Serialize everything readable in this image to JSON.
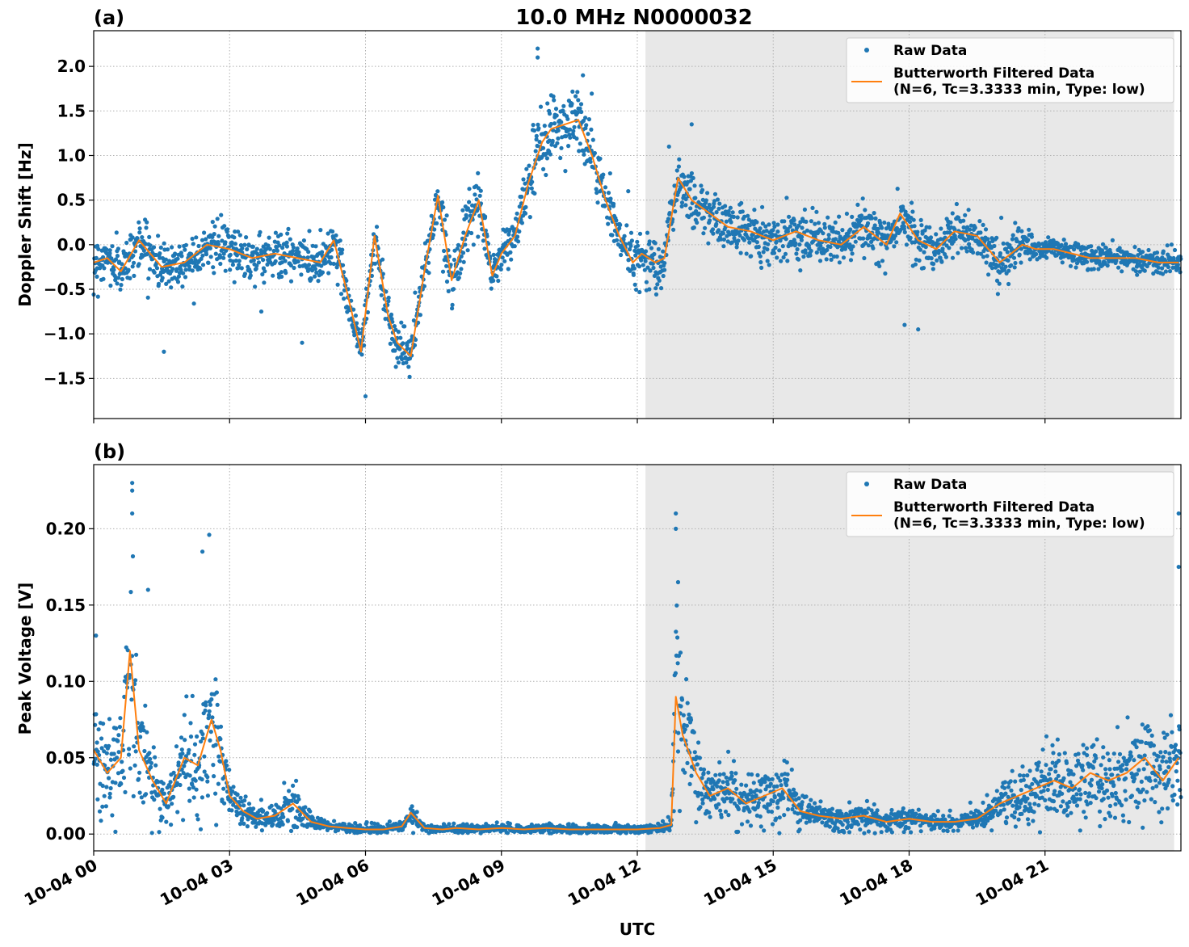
{
  "figure": {
    "title": "10.0 MHz N0000032",
    "xlabel": "UTC",
    "shaded_region": {
      "start_hour": 12.18,
      "end_hour": 23.85,
      "color": "#e8e8e8"
    },
    "x_ticks": [
      {
        "hour": 0,
        "label": "10-04 00"
      },
      {
        "hour": 3,
        "label": "10-04 03"
      },
      {
        "hour": 6,
        "label": "10-04 06"
      },
      {
        "hour": 9,
        "label": "10-04 09"
      },
      {
        "hour": 12,
        "label": "10-04 12"
      },
      {
        "hour": 15,
        "label": "10-04 15"
      },
      {
        "hour": 18,
        "label": "10-04 18"
      },
      {
        "hour": 21,
        "label": "10-04 21"
      }
    ],
    "colors": {
      "raw": "#1f77b4",
      "filtered": "#ff7f0e",
      "grid": "#b0b0b0"
    }
  },
  "chart_data": [
    {
      "panel_label": "(a)",
      "type": "scatter",
      "ylabel": "Doppler Shift [Hz]",
      "xlim": [
        0,
        24
      ],
      "ylim": [
        -1.95,
        2.4
      ],
      "y_ticks": [
        {
          "value": 2.0,
          "label": "2.0"
        },
        {
          "value": 1.5,
          "label": "1.5"
        },
        {
          "value": 1.0,
          "label": "1.0"
        },
        {
          "value": 0.5,
          "label": "0.5"
        },
        {
          "value": 0.0,
          "label": "0.0"
        },
        {
          "value": -0.5,
          "label": "−0.5"
        },
        {
          "value": -1.0,
          "label": "−1.0"
        },
        {
          "value": -1.5,
          "label": "−1.5"
        }
      ],
      "legend": {
        "position": "top-right",
        "raw": "Raw Data",
        "filtered_line1": "Butterworth Filtered Data",
        "filtered_line2": "(N=6, Tc=3.3333 min, Type: low)"
      },
      "series": [
        {
          "name": "Butterworth Filtered Data",
          "x": [
            0,
            0.3,
            0.6,
            1.0,
            1.5,
            2.0,
            2.5,
            3.0,
            3.5,
            4.0,
            4.5,
            5.0,
            5.3,
            5.6,
            5.9,
            6.2,
            6.5,
            6.7,
            7.0,
            7.3,
            7.6,
            7.9,
            8.2,
            8.5,
            8.8,
            9.0,
            9.3,
            9.6,
            9.9,
            10.1,
            10.4,
            10.7,
            11.0,
            11.3,
            11.6,
            11.9,
            12.1,
            12.4,
            12.6,
            12.9,
            13.2,
            13.6,
            14.0,
            14.5,
            15.0,
            15.5,
            16.0,
            16.5,
            17.0,
            17.5,
            17.8,
            18.2,
            18.6,
            19.0,
            19.5,
            20.0,
            20.5,
            20.8,
            21.2,
            21.6,
            22.0,
            22.5,
            23.0,
            23.5,
            23.95
          ],
          "y": [
            -0.2,
            -0.15,
            -0.3,
            0.05,
            -0.25,
            -0.2,
            0.0,
            -0.05,
            -0.15,
            -0.1,
            -0.15,
            -0.2,
            0.05,
            -0.55,
            -1.2,
            0.1,
            -0.8,
            -1.1,
            -1.25,
            -0.3,
            0.55,
            -0.4,
            0.1,
            0.5,
            -0.35,
            -0.1,
            0.1,
            0.7,
            1.15,
            1.3,
            1.35,
            1.4,
            1.0,
            0.5,
            0.1,
            -0.2,
            -0.1,
            -0.2,
            -0.15,
            0.75,
            0.5,
            0.35,
            0.2,
            0.15,
            0.05,
            0.15,
            0.05,
            0.0,
            0.2,
            0.0,
            0.35,
            0.05,
            -0.05,
            0.15,
            0.1,
            -0.2,
            0.0,
            -0.05,
            -0.05,
            -0.1,
            -0.15,
            -0.15,
            -0.15,
            -0.2,
            -0.2
          ]
        },
        {
          "name": "Raw Data",
          "outliers": [
            {
              "x": 1.55,
              "y": -1.2
            },
            {
              "x": 9.8,
              "y": 2.2
            },
            {
              "x": 9.8,
              "y": 2.1
            },
            {
              "x": 10.05,
              "y": 1.5
            },
            {
              "x": 10.8,
              "y": 1.9
            },
            {
              "x": 11.4,
              "y": 0.8
            },
            {
              "x": 11.8,
              "y": 0.6
            },
            {
              "x": 13.2,
              "y": 1.35
            },
            {
              "x": 12.7,
              "y": 1.1
            },
            {
              "x": 17.9,
              "y": -0.9
            },
            {
              "x": 18.2,
              "y": -0.95
            },
            {
              "x": 4.6,
              "y": -1.1
            },
            {
              "x": 3.7,
              "y": -0.75
            },
            {
              "x": 6.0,
              "y": -1.7
            }
          ]
        }
      ]
    },
    {
      "panel_label": "(b)",
      "type": "scatter",
      "ylabel": "Peak Voltage [V]",
      "xlim": [
        0,
        24
      ],
      "ylim": [
        -0.011,
        0.242
      ],
      "y_ticks": [
        {
          "value": 0.2,
          "label": "0.20"
        },
        {
          "value": 0.15,
          "label": "0.15"
        },
        {
          "value": 0.1,
          "label": "0.10"
        },
        {
          "value": 0.05,
          "label": "0.05"
        },
        {
          "value": 0.0,
          "label": "0.00"
        }
      ],
      "legend": {
        "position": "top-right",
        "raw": "Raw Data",
        "filtered_line1": "Butterworth Filtered Data",
        "filtered_line2": "(N=6, Tc=3.3333 min, Type: low)"
      },
      "series": [
        {
          "name": "Butterworth Filtered Data",
          "x": [
            0,
            0.3,
            0.6,
            0.8,
            1.0,
            1.3,
            1.6,
            2.0,
            2.3,
            2.6,
            2.8,
            3.0,
            3.3,
            3.6,
            4.0,
            4.4,
            4.8,
            5.2,
            5.6,
            6.0,
            6.4,
            6.8,
            7.0,
            7.3,
            7.7,
            8.0,
            8.5,
            9.0,
            9.5,
            10.0,
            10.5,
            11.0,
            11.5,
            12.0,
            12.5,
            12.75,
            12.85,
            13.0,
            13.3,
            13.6,
            14.0,
            14.4,
            14.8,
            15.2,
            15.6,
            16.0,
            16.5,
            17.0,
            17.5,
            18.0,
            18.5,
            19.0,
            19.5,
            20.0,
            20.4,
            20.8,
            21.2,
            21.6,
            22.0,
            22.4,
            22.8,
            23.2,
            23.6,
            23.95
          ],
          "y": [
            0.055,
            0.04,
            0.05,
            0.12,
            0.055,
            0.035,
            0.02,
            0.05,
            0.045,
            0.075,
            0.055,
            0.025,
            0.015,
            0.01,
            0.012,
            0.02,
            0.008,
            0.005,
            0.004,
            0.003,
            0.003,
            0.005,
            0.014,
            0.004,
            0.003,
            0.004,
            0.003,
            0.004,
            0.003,
            0.004,
            0.003,
            0.003,
            0.003,
            0.003,
            0.004,
            0.006,
            0.09,
            0.065,
            0.04,
            0.025,
            0.03,
            0.02,
            0.025,
            0.03,
            0.015,
            0.012,
            0.01,
            0.012,
            0.008,
            0.01,
            0.008,
            0.008,
            0.01,
            0.02,
            0.025,
            0.03,
            0.035,
            0.03,
            0.04,
            0.035,
            0.04,
            0.05,
            0.035,
            0.05
          ]
        },
        {
          "name": "Raw Data",
          "outliers": [
            {
              "x": 0.85,
              "y": 0.23
            },
            {
              "x": 0.85,
              "y": 0.225
            },
            {
              "x": 0.85,
              "y": 0.21
            },
            {
              "x": 2.55,
              "y": 0.196
            },
            {
              "x": 2.4,
              "y": 0.185
            },
            {
              "x": 1.2,
              "y": 0.16
            },
            {
              "x": 12.85,
              "y": 0.21
            },
            {
              "x": 12.85,
              "y": 0.2
            },
            {
              "x": 12.9,
              "y": 0.165
            },
            {
              "x": 23.95,
              "y": 0.21
            },
            {
              "x": 23.95,
              "y": 0.175
            },
            {
              "x": 0.05,
              "y": 0.13
            }
          ]
        }
      ]
    }
  ]
}
